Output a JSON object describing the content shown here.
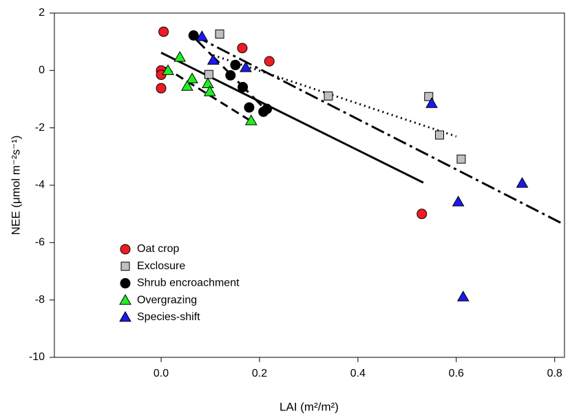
{
  "chart_data": {
    "type": "scatter",
    "x_label": "LAI (m²/m²)",
    "y_label": "NEE (μmol m⁻²s⁻¹)",
    "xlim": [
      -0.217,
      0.82
    ],
    "ylim": [
      -10,
      2
    ],
    "xticks": [
      {
        "value": 0,
        "label": "0.0"
      },
      0.2,
      0.4,
      0.6,
      0.8
    ],
    "yticks": [
      -10,
      -8,
      -6,
      -4,
      -2,
      0,
      2
    ],
    "legend": "lower left",
    "series": [
      {
        "name": "Oat crop",
        "color": "#ee1c24",
        "marker": "circle",
        "x": [
          0.005,
          0,
          0,
          0,
          0.165,
          0.22,
          0.53
        ],
        "values": [
          1.35,
          0,
          -0.15,
          -0.62,
          0.78,
          0.32,
          -5.0
        ],
        "fit": {
          "x": [
            0,
            0.533
          ],
          "y": [
            0.62,
            -3.91
          ],
          "dash": "none"
        }
      },
      {
        "name": "Exclosure",
        "color": "#c0c0c0",
        "marker": "square",
        "x": [
          0.119,
          0.097,
          0.34,
          0.544,
          0.566,
          0.61
        ],
        "values": [
          1.27,
          -0.14,
          -0.89,
          -0.91,
          -2.25,
          -3.09
        ],
        "fit": {
          "x": [
            0.106,
            0.6
          ],
          "y": [
            0.53,
            -2.3
          ],
          "dash": "2,5"
        }
      },
      {
        "name": "Shrub encroachment",
        "color": "#000000",
        "marker": "circle",
        "x": [
          0.066,
          0.151,
          0.141,
          0.166,
          0.179,
          0.208,
          0.215
        ],
        "values": [
          1.22,
          0.19,
          -0.17,
          -0.58,
          -1.29,
          -1.44,
          -1.34
        ],
        "fit": {
          "x": [
            0.067,
            0.204
          ],
          "y": [
            1.15,
            -1.22
          ],
          "dash": "22,8"
        }
      },
      {
        "name": "Overgrazing",
        "color": "#22ee22",
        "marker": "triangle",
        "x": [
          0.038,
          0.014,
          0.063,
          0.053,
          0.095,
          0.099,
          0.183
        ],
        "values": [
          0.46,
          0,
          -0.29,
          -0.55,
          -0.46,
          -0.74,
          -1.75
        ],
        "fit": {
          "x": [
            0.008,
            0.186
          ],
          "y": [
            0.1,
            -1.8
          ],
          "dash": "12,7"
        }
      },
      {
        "name": "Species-shift",
        "color": "#1a1aee",
        "marker": "triangle",
        "x": [
          0.083,
          0.106,
          0.172,
          0.55,
          0.734,
          0.604,
          0.614
        ],
        "values": [
          1.18,
          0.36,
          0.1,
          -1.15,
          -3.93,
          -4.58,
          -7.89
        ],
        "fit": {
          "x": [
            0.069,
            0.817
          ],
          "y": [
            1.2,
            -5.35
          ],
          "dash": "20,6,4,6"
        }
      }
    ]
  }
}
